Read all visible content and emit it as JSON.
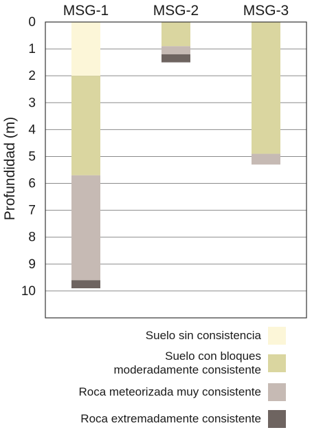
{
  "chart_data": {
    "type": "bar",
    "orientation": "vertical-depth",
    "ylabel": "Profundidad (m)",
    "ylim": [
      0,
      11
    ],
    "yticks": [
      0,
      1,
      2,
      3,
      4,
      5,
      6,
      7,
      8,
      9,
      10
    ],
    "grid": true,
    "categories": [
      "MSG-1",
      "MSG-2",
      "MSG-3"
    ],
    "layers": [
      {
        "name": "Suelo sin consistencia",
        "color": "#fcf6d8"
      },
      {
        "name": "Suelo con bloques\nmoderadamente consistente",
        "color": "#dad6a0"
      },
      {
        "name": "Roca meteorizada muy consistente",
        "color": "#c6bab4"
      },
      {
        "name": "Roca extremadamente consistente",
        "color": "#6e6460"
      }
    ],
    "columns": [
      {
        "name": "MSG-1",
        "intervals": [
          {
            "layer": 0,
            "from": 0,
            "to": 2.0
          },
          {
            "layer": 1,
            "from": 2.0,
            "to": 5.7
          },
          {
            "layer": 2,
            "from": 5.7,
            "to": 9.6
          },
          {
            "layer": 3,
            "from": 9.6,
            "to": 9.9
          }
        ]
      },
      {
        "name": "MSG-2",
        "intervals": [
          {
            "layer": 1,
            "from": 0,
            "to": 0.9
          },
          {
            "layer": 2,
            "from": 0.9,
            "to": 1.2
          },
          {
            "layer": 3,
            "from": 1.2,
            "to": 1.5
          }
        ]
      },
      {
        "name": "MSG-3",
        "intervals": [
          {
            "layer": 1,
            "from": 0,
            "to": 4.9
          },
          {
            "layer": 2,
            "from": 4.9,
            "to": 5.3
          }
        ]
      }
    ],
    "legend_position": "bottom-right"
  }
}
